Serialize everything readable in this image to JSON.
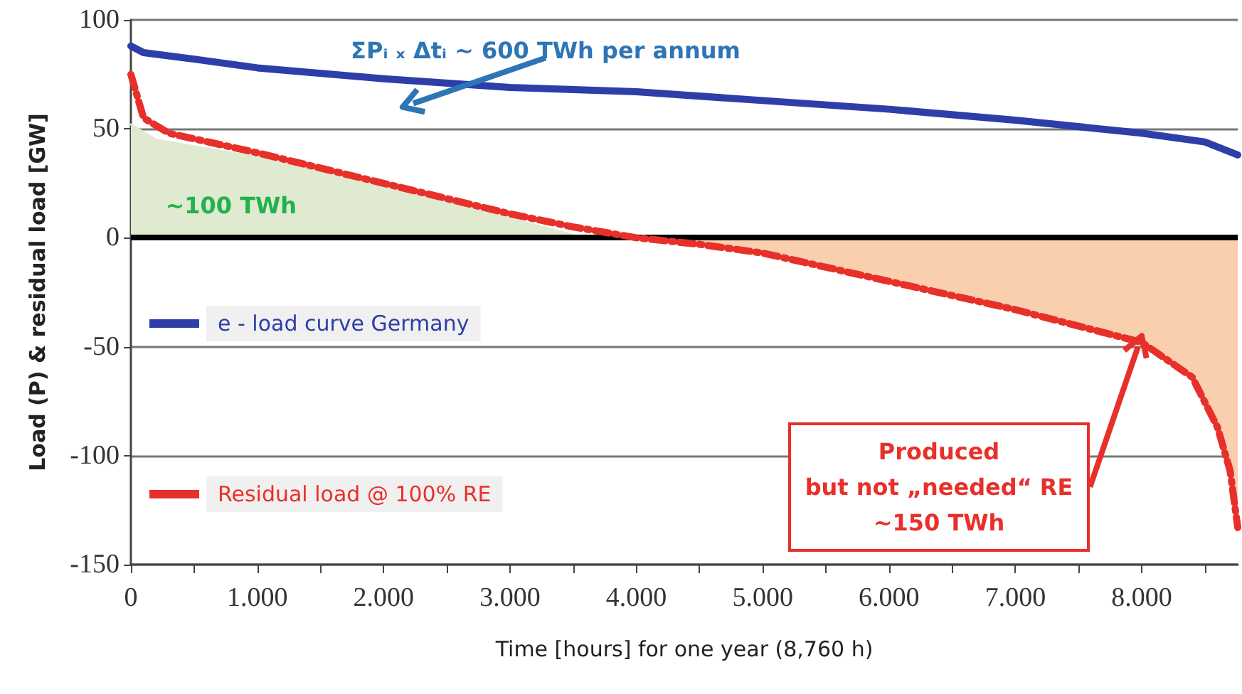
{
  "chart_data": {
    "type": "line",
    "xlabel": "Time [hours] for one year (8,760 h)",
    "ylabel": "Load (P) & residual load [GW]",
    "xlim": [
      0,
      8760
    ],
    "ylim": [
      -150,
      100
    ],
    "xticks": [
      0,
      {
        "value": 500,
        "label": null
      },
      {
        "value": 1000,
        "label": "1.000"
      },
      {
        "value": 1500,
        "label": null
      },
      {
        "value": 2000,
        "label": "2.000"
      },
      {
        "value": 2500,
        "label": null
      },
      {
        "value": 3000,
        "label": "3.000"
      },
      {
        "value": 3500,
        "label": null
      },
      {
        "value": 4000,
        "label": "4.000"
      },
      {
        "value": 4500,
        "label": null
      },
      {
        "value": 5000,
        "label": "5.000"
      },
      {
        "value": 5500,
        "label": null
      },
      {
        "value": 6000,
        "label": "6.000"
      },
      {
        "value": 6500,
        "label": null
      },
      {
        "value": 7000,
        "label": "7.000"
      },
      {
        "value": 7500,
        "label": null
      },
      {
        "value": 8000,
        "label": "8.000"
      },
      {
        "value": 8500,
        "label": null
      }
    ],
    "yticks": [
      -150,
      -100,
      -50,
      0,
      50,
      100
    ],
    "grid": "y",
    "legend": "left",
    "marker": "none",
    "ref_lines": [
      {
        "axis": "y",
        "value": 0,
        "color": "#000000"
      }
    ],
    "series": [
      {
        "type": "area",
        "color": "#dfead0",
        "x": [
          0,
          200,
          1000,
          2000,
          3000,
          3580
        ],
        "values": [
          52,
          45,
          37,
          24,
          9,
          0
        ]
      },
      {
        "type": "area",
        "color": "#f9cfae",
        "x": [
          4000,
          4500,
          5000,
          6000,
          7000,
          8000,
          8400,
          8600,
          8700,
          8760
        ],
        "values": [
          0,
          -3,
          -7,
          -20,
          -33,
          -48,
          -64,
          -87,
          -107,
          -133
        ]
      },
      {
        "name": "e - load curve Germany",
        "color": "#2e3ea8",
        "line_style": "solid",
        "x": [
          0,
          100,
          500,
          1000,
          2000,
          3000,
          4000,
          5000,
          6000,
          7000,
          8000,
          8500,
          8760
        ],
        "values": [
          88,
          85,
          82,
          78,
          73,
          69,
          67,
          63,
          59,
          54,
          48,
          44,
          38
        ]
      },
      {
        "name": "Residual load @ 100% RE",
        "color": "#e8302a",
        "line_style": "dashed",
        "x": [
          0,
          100,
          300,
          1000,
          2000,
          3000,
          3500,
          4000,
          4500,
          5000,
          6000,
          7000,
          8000,
          8400,
          8600,
          8700,
          8760
        ],
        "values": [
          75,
          55,
          48,
          39,
          25,
          11,
          5,
          0,
          -3,
          -7,
          -20,
          -33,
          -48,
          -64,
          -87,
          -107,
          -133
        ]
      }
    ],
    "annotations": [
      "ΣPᵢ ₓ Δtᵢ ~ 600 TWh per annum",
      "~100 TWh",
      {
        "text": "Produced\nbut not „needed“ RE\n~150 TWh",
        "x": 8000,
        "y": -45
      }
    ]
  }
}
